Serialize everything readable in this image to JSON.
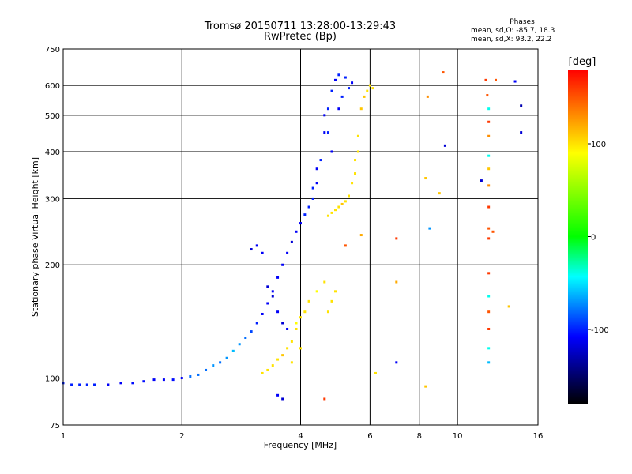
{
  "chart_data": {
    "type": "scatter",
    "title": "Tromsø 20150711 13:28:00-13:29:43",
    "subtitle": "RwPretec (Bp)",
    "xlabel": "Frequency [MHz]",
    "ylabel": "Stationary phase Virtual Height [km]",
    "x_scale": "log",
    "y_scale": "log",
    "xlim": [
      1,
      16
    ],
    "ylim": [
      75,
      750
    ],
    "x_ticks": [
      1,
      2,
      4,
      6,
      8,
      10,
      16
    ],
    "x_tick_labels": [
      "1",
      "2",
      "4",
      "6",
      "8",
      "10",
      "16"
    ],
    "y_ticks": [
      75,
      100,
      200,
      300,
      400,
      500,
      600,
      750
    ],
    "y_tick_labels": [
      "75",
      "100",
      "200",
      "300",
      "400",
      "500",
      "600",
      "750"
    ],
    "grid": true,
    "stats": {
      "header": "Phases",
      "line1": "mean, sd,O: -85.7, 18.3",
      "line2": "mean, sd,X:  93.2, 22.2"
    },
    "colorbar": {
      "label": "[deg]",
      "range": [
        -180,
        180
      ],
      "ticks": [
        100,
        0,
        -100
      ],
      "tick_labels": [
        "100",
        "0",
        "-100"
      ],
      "colors": [
        "#ff0000",
        "#ffff00",
        "#00ff00",
        "#00ffff",
        "#0000ff",
        "#000000"
      ]
    },
    "series": [
      {
        "points": [
          [
            1.0,
            97,
            -100
          ],
          [
            1.05,
            96,
            -100
          ],
          [
            1.1,
            96,
            -100
          ],
          [
            1.15,
            96,
            -100
          ],
          [
            1.2,
            96,
            -100
          ],
          [
            1.3,
            96,
            -110
          ],
          [
            1.4,
            97,
            -110
          ],
          [
            1.5,
            97,
            -105
          ],
          [
            1.6,
            98,
            -105
          ],
          [
            1.7,
            99,
            -110
          ],
          [
            1.8,
            99,
            -110
          ],
          [
            1.9,
            99,
            -105
          ],
          [
            2.0,
            100,
            -110
          ],
          [
            2.1,
            101,
            -80
          ],
          [
            2.2,
            102,
            -80
          ],
          [
            2.3,
            105,
            -80
          ],
          [
            2.4,
            108,
            -70
          ],
          [
            2.5,
            110,
            -80
          ],
          [
            2.6,
            113,
            -70
          ],
          [
            2.7,
            118,
            -60
          ],
          [
            2.8,
            123,
            -70
          ],
          [
            2.9,
            128,
            -80
          ],
          [
            3.0,
            133,
            -90
          ],
          [
            3.1,
            140,
            -100
          ],
          [
            3.2,
            148,
            -110
          ],
          [
            3.3,
            158,
            -110
          ],
          [
            3.4,
            170,
            -110
          ],
          [
            3.5,
            185,
            -110
          ],
          [
            3.6,
            200,
            -110
          ],
          [
            3.7,
            215,
            -110
          ],
          [
            3.8,
            230,
            -120
          ],
          [
            3.9,
            245,
            -110
          ],
          [
            4.0,
            258,
            -110
          ],
          [
            4.1,
            272,
            -100
          ],
          [
            4.2,
            285,
            -100
          ],
          [
            4.3,
            300,
            -100
          ],
          [
            4.4,
            330,
            -110
          ],
          [
            4.5,
            380,
            -100
          ],
          [
            4.6,
            450,
            -110
          ],
          [
            4.7,
            520,
            -100
          ],
          [
            4.8,
            580,
            -100
          ],
          [
            4.9,
            620,
            -110
          ],
          [
            5.0,
            640,
            -100
          ],
          [
            5.2,
            630,
            -100
          ],
          [
            5.4,
            610,
            -110
          ],
          [
            3.1,
            225,
            -110
          ],
          [
            3.0,
            220,
            -120
          ],
          [
            3.2,
            215,
            -110
          ],
          [
            3.3,
            175,
            -120
          ],
          [
            3.4,
            165,
            -120
          ],
          [
            3.5,
            150,
            -110
          ],
          [
            3.6,
            140,
            -120
          ],
          [
            3.7,
            135,
            -110
          ],
          [
            3.5,
            90,
            -110
          ],
          [
            3.6,
            88,
            -120
          ],
          [
            4.6,
            500,
            -110
          ],
          [
            4.7,
            450,
            -100
          ],
          [
            4.8,
            400,
            -110
          ],
          [
            5.0,
            520,
            -110
          ],
          [
            5.1,
            560,
            -100
          ],
          [
            5.3,
            590,
            -100
          ],
          [
            4.3,
            320,
            -100
          ],
          [
            4.4,
            360,
            -110
          ]
        ]
      },
      {
        "points": [
          [
            3.2,
            103,
            100
          ],
          [
            3.3,
            105,
            100
          ],
          [
            3.4,
            108,
            100
          ],
          [
            3.5,
            112,
            100
          ],
          [
            3.6,
            115,
            110
          ],
          [
            3.7,
            120,
            100
          ],
          [
            3.8,
            125,
            100
          ],
          [
            3.9,
            135,
            100
          ],
          [
            4.0,
            145,
            100
          ],
          [
            4.2,
            160,
            100
          ],
          [
            4.4,
            170,
            90
          ],
          [
            4.6,
            180,
            100
          ],
          [
            4.7,
            270,
            100
          ],
          [
            4.8,
            275,
            100
          ],
          [
            4.9,
            280,
            100
          ],
          [
            5.0,
            285,
            100
          ],
          [
            5.1,
            290,
            110
          ],
          [
            5.2,
            295,
            100
          ],
          [
            5.3,
            305,
            100
          ],
          [
            5.4,
            330,
            100
          ],
          [
            5.5,
            380,
            100
          ],
          [
            5.6,
            440,
            100
          ],
          [
            5.7,
            520,
            110
          ],
          [
            5.8,
            560,
            110
          ],
          [
            5.9,
            580,
            100
          ],
          [
            6.0,
            600,
            100
          ],
          [
            6.1,
            590,
            100
          ],
          [
            5.5,
            350,
            100
          ],
          [
            5.6,
            400,
            100
          ],
          [
            4.8,
            160,
            100
          ],
          [
            4.9,
            170,
            100
          ],
          [
            4.7,
            150,
            100
          ],
          [
            3.9,
            140,
            90
          ],
          [
            4.1,
            150,
            100
          ],
          [
            4.0,
            120,
            100
          ],
          [
            3.8,
            110,
            100
          ]
        ]
      },
      {
        "points": [
          [
            7.0,
            235,
            160
          ],
          [
            7.0,
            180,
            120
          ],
          [
            7.0,
            110,
            -110
          ],
          [
            8.3,
            340,
            110
          ],
          [
            8.4,
            560,
            130
          ],
          [
            8.5,
            250,
            -70
          ],
          [
            8.3,
            95,
            110
          ],
          [
            9.2,
            650,
            150
          ],
          [
            9.3,
            415,
            -120
          ],
          [
            9.0,
            310,
            110
          ],
          [
            11.8,
            620,
            160
          ],
          [
            11.9,
            565,
            150
          ],
          [
            12.0,
            520,
            -40
          ],
          [
            12.0,
            480,
            160
          ],
          [
            12.0,
            440,
            130
          ],
          [
            12.0,
            390,
            -40
          ],
          [
            12.0,
            360,
            110
          ],
          [
            12.0,
            325,
            130
          ],
          [
            12.0,
            285,
            160
          ],
          [
            12.0,
            250,
            150
          ],
          [
            12.0,
            235,
            160
          ],
          [
            12.0,
            190,
            160
          ],
          [
            12.0,
            165,
            -40
          ],
          [
            12.0,
            150,
            150
          ],
          [
            12.0,
            135,
            160
          ],
          [
            12.0,
            120,
            -40
          ],
          [
            12.0,
            110,
            -60
          ],
          [
            11.5,
            335,
            -120
          ],
          [
            12.5,
            620,
            150
          ],
          [
            14.0,
            615,
            -110
          ],
          [
            14.5,
            530,
            -130
          ],
          [
            14.5,
            450,
            -120
          ],
          [
            13.5,
            155,
            110
          ],
          [
            12.3,
            245,
            150
          ],
          [
            6.2,
            103,
            100
          ],
          [
            4.6,
            88,
            160
          ],
          [
            5.2,
            225,
            150
          ],
          [
            5.7,
            240,
            120
          ]
        ]
      }
    ]
  }
}
